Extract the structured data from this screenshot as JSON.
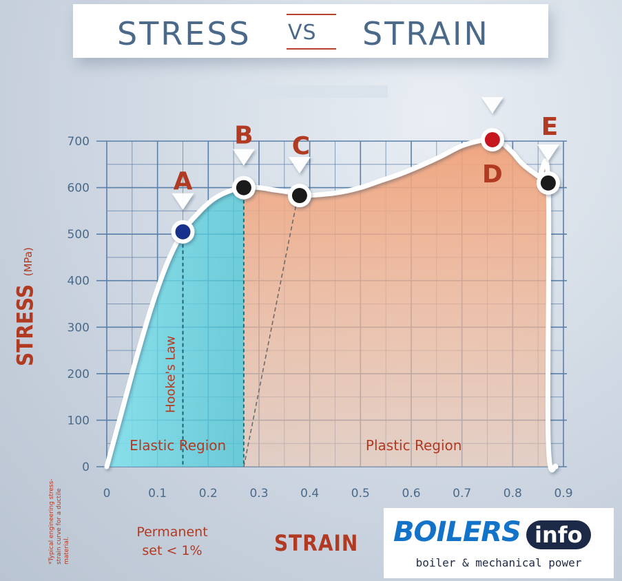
{
  "title": {
    "left": "STRESS",
    "vs": "VS",
    "right": "STRAIN"
  },
  "colors": {
    "grid": "#5a7fa8",
    "accent_red": "#b13a22",
    "elastic_fill": "#5fd2e0",
    "plastic_fill": "#f0a27a",
    "curve": "#ffffff",
    "point_A": "#17318c",
    "point_D": "#c4161c",
    "point_dark": "#1a1a1a",
    "logo_blue": "#1273c9",
    "logo_navy": "#1c2a47"
  },
  "chart_data": {
    "type": "line",
    "xlabel": "STRAIN",
    "ylabel": "STRESS",
    "ylabel_unit": "(MPa)",
    "xlim": [
      0,
      0.9
    ],
    "ylim": [
      0,
      700
    ],
    "xticks": [
      "0",
      "0.1",
      "0.2",
      "0.3",
      "0.4",
      "0.5",
      "0.6",
      "0.7",
      "0.8",
      "0.9"
    ],
    "yticks": [
      "0",
      "100",
      "200",
      "300",
      "400",
      "500",
      "600",
      "700"
    ],
    "grid": true,
    "series": [
      {
        "x": [
          0,
          0.03,
          0.06,
          0.09,
          0.12,
          0.15,
          0.18,
          0.21,
          0.24,
          0.27,
          0.3,
          0.33,
          0.36,
          0.38,
          0.42,
          0.46,
          0.5,
          0.54,
          0.58,
          0.62,
          0.66,
          0.7,
          0.74,
          0.76,
          0.78,
          0.8,
          0.82,
          0.85,
          0.87,
          0.87,
          0.885
        ],
        "values": [
          0,
          120,
          240,
          350,
          440,
          505,
          545,
          575,
          592,
          600,
          600,
          595,
          590,
          583,
          585,
          590,
          600,
          615,
          630,
          648,
          668,
          690,
          702,
          703,
          695,
          675,
          650,
          625,
          610,
          60,
          0
        ]
      }
    ],
    "points": [
      {
        "label": "A",
        "x": 0.15,
        "y": 505
      },
      {
        "label": "B",
        "x": 0.27,
        "y": 600
      },
      {
        "label": "C",
        "x": 0.38,
        "y": 583
      },
      {
        "label": "D",
        "x": 0.76,
        "y": 703
      },
      {
        "label": "E",
        "x": 0.87,
        "y": 610
      }
    ],
    "regions": [
      {
        "label": "Elastic Region",
        "x_from": 0,
        "x_to": 0.27
      },
      {
        "label": "Plastic Region",
        "x_from": 0.27,
        "x_to": 0.885
      }
    ],
    "annotations": {
      "hookes_law": "Hooke's Law",
      "hookes_x": 0.15,
      "offset_line": {
        "x_from": 0.27,
        "x_to": 0.38
      }
    }
  },
  "permanent_set": "Permanent\nset < 1%",
  "footnote": "*Typical engineering stress-strain curve for a ductile material.",
  "logo": {
    "main": "BOILERS",
    "badge": "info",
    "tagline": "boiler & mechanical power"
  }
}
